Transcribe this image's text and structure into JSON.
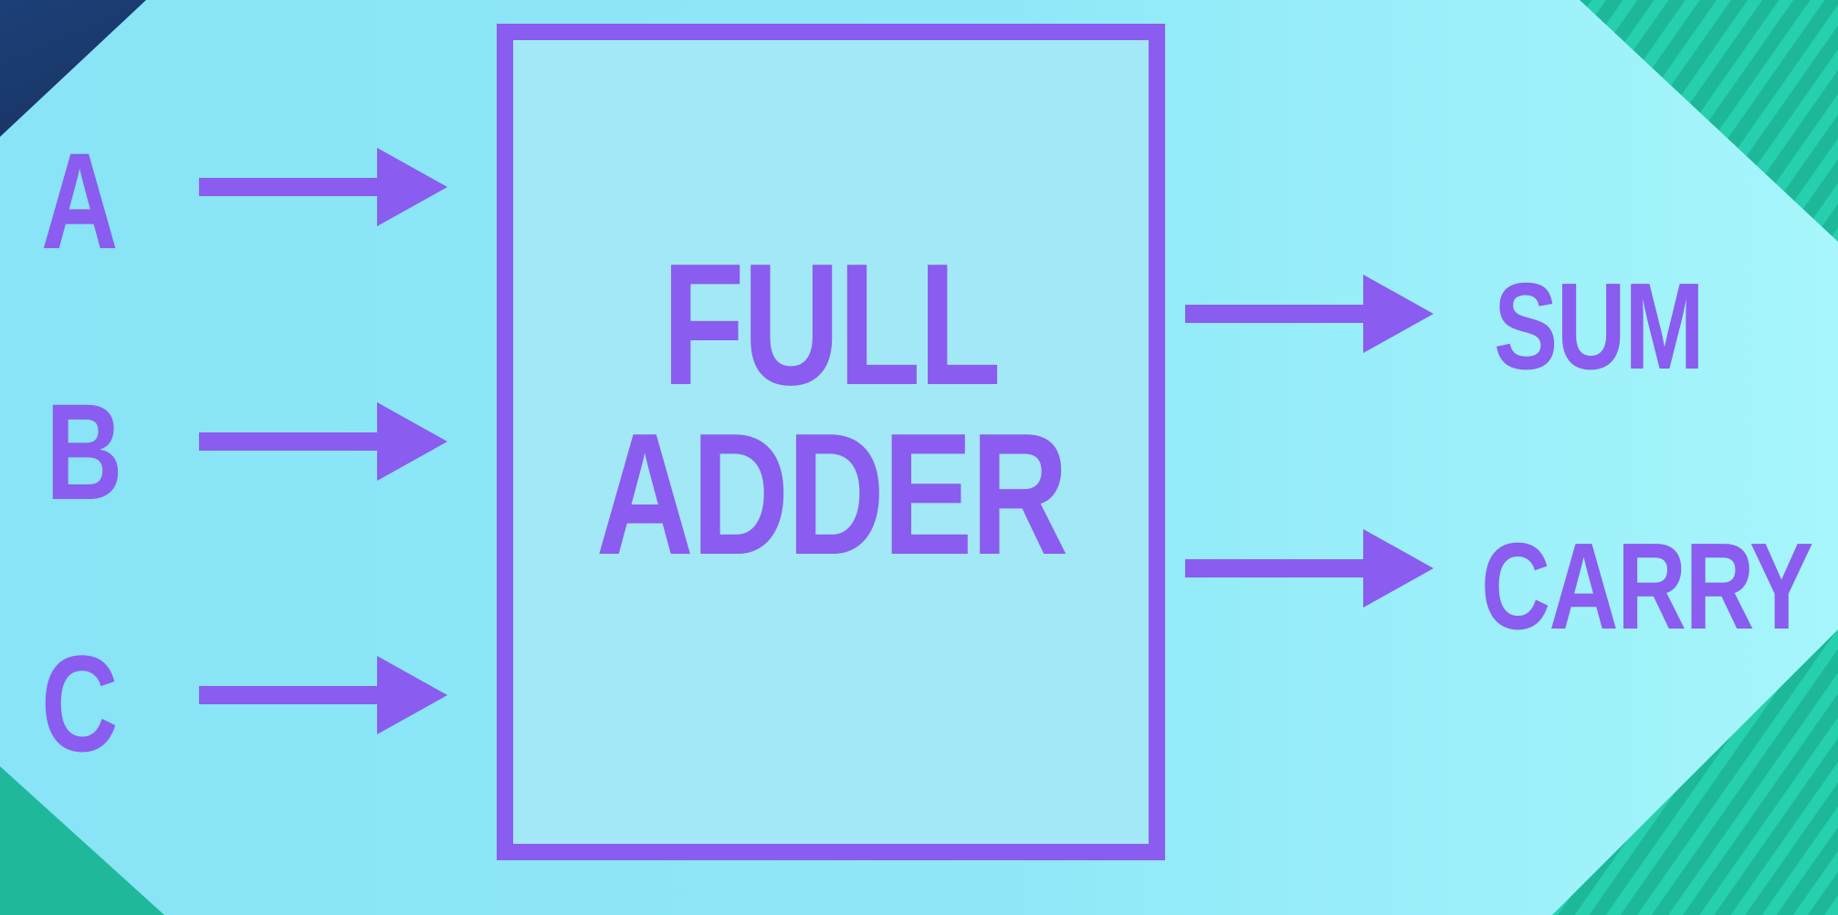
{
  "block": {
    "line1": "FULL",
    "line2": "ADDER"
  },
  "inputs": [
    {
      "label": "A"
    },
    {
      "label": "B"
    },
    {
      "label": "C"
    }
  ],
  "outputs": [
    {
      "label": "SUM"
    },
    {
      "label": "CARRY"
    }
  ],
  "colors": {
    "accent": "#8a5cf0",
    "panel": "#8ee6f7",
    "block_fill": "#a2e7f6",
    "background_dark": "#1f3b6e",
    "background_teal": "#1fbf9f"
  }
}
